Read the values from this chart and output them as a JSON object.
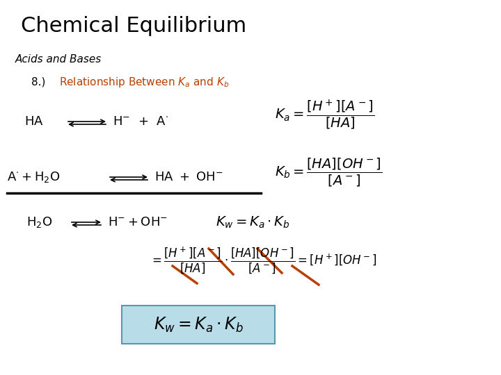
{
  "background_color": "#ffffff",
  "title": "Chemical Equilibrium",
  "title_fontsize": 22,
  "subtitle": "Acids and Bases",
  "subtitle_fontsize": 11,
  "item_number": "8.)",
  "item_fontsize": 11,
  "relationship_color": "#b84000",
  "relationship_fontsize": 11,
  "eq_fontsize": 13,
  "formula_fontsize": 13,
  "kw_box_color": "#b8dce8",
  "strikethrough_color": "#b84000",
  "underline_color": "#000000"
}
